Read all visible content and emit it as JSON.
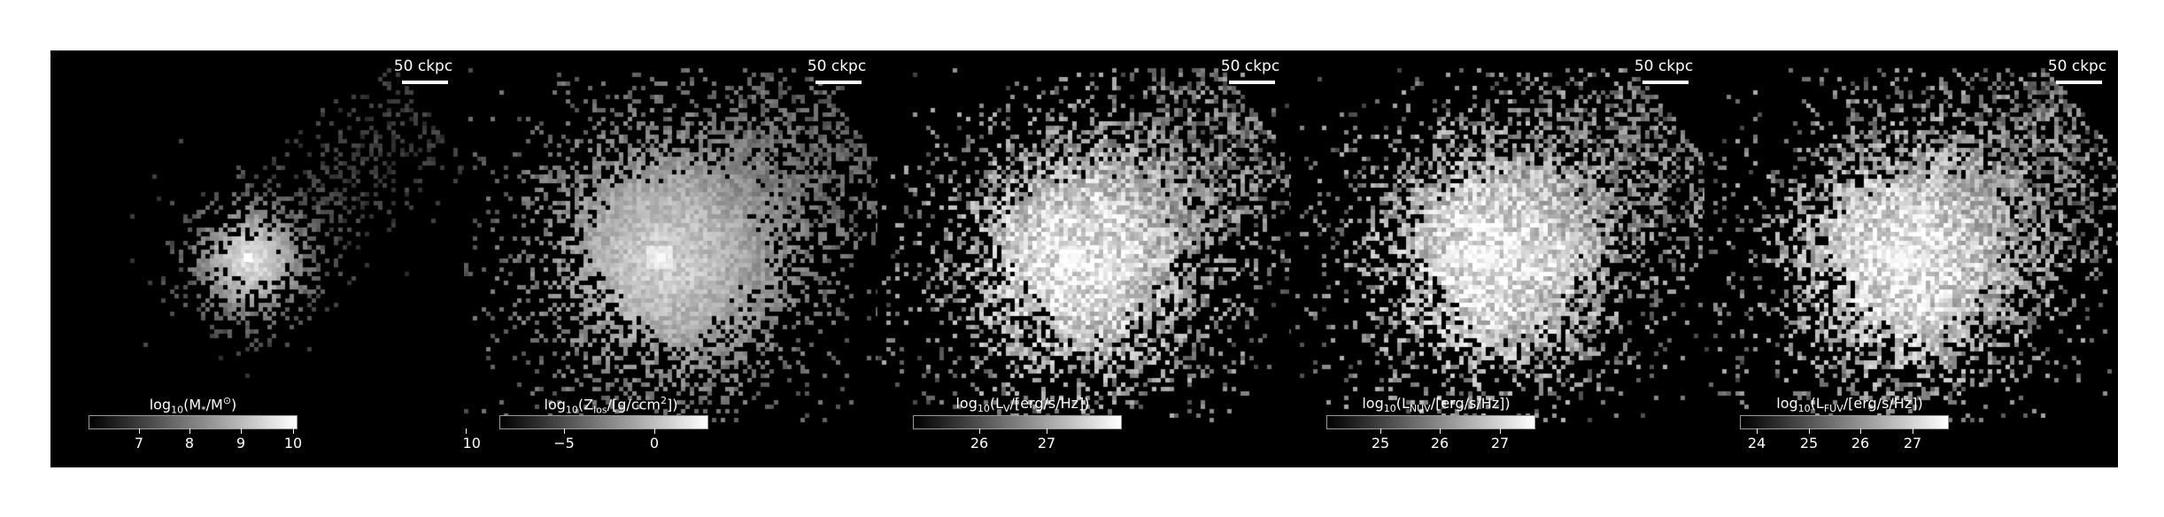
{
  "scale_bar_label": "50 ckpc",
  "colormap": "grayscale",
  "panels": [
    {
      "id": "mass",
      "colorbar_title_parts": [
        "log",
        "10",
        "(M",
        "*",
        "/M",
        "⊙",
        ")"
      ],
      "colorbar_ticks": [
        "7",
        "8",
        "9",
        "10"
      ]
    },
    {
      "id": "metallicity",
      "colorbar_title_parts": [
        "log",
        "10",
        "(Z",
        "los",
        "/[g/ccm",
        "2",
        "])"
      ],
      "colorbar_ticks": [
        "−10",
        "−5",
        "0"
      ]
    },
    {
      "id": "v-band",
      "colorbar_title_parts": [
        "log",
        "10",
        "(L",
        "V",
        "/[erg/s/Hz]",
        "",
        ")"
      ],
      "colorbar_ticks": [
        "26",
        "27"
      ]
    },
    {
      "id": "nuv",
      "colorbar_title_parts": [
        "log",
        "10",
        "(L",
        "NUV",
        "/[erg/s/Hz]",
        "",
        ")"
      ],
      "colorbar_ticks": [
        "25",
        "26",
        "27"
      ]
    },
    {
      "id": "fuv",
      "colorbar_title_parts": [
        "log",
        "10",
        "(L",
        "FUV",
        "/[erg/s/Hz]",
        "",
        ")"
      ],
      "colorbar_ticks": [
        "24",
        "25",
        "26",
        "27"
      ]
    }
  ]
}
